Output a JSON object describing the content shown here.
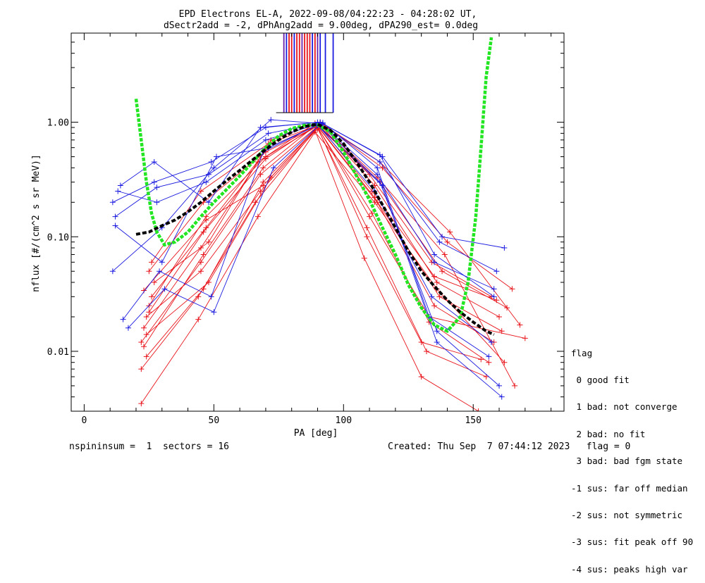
{
  "chart_data": {
    "type": "line",
    "title": "EPD Electrons EL-A, 2022-09-08/04:22:23 - 04:28:02 UT,",
    "subtitle": "dSectr2add = -2, dPhAng2add = 9.00deg, dPA290_est=   0.0deg",
    "xlabel": "PA [deg]",
    "ylabel": "nflux [#/(cm^2 s sr MeV)]",
    "xlim": [
      -5,
      185
    ],
    "ylim": [
      0.003,
      6
    ],
    "yscale": "log",
    "xticks": [
      0,
      50,
      100,
      150
    ],
    "xtick_labels": [
      "0",
      "50",
      "100",
      "150"
    ],
    "yticks": [
      0.01,
      0.1,
      1.0
    ],
    "ytick_labels": [
      "0.01",
      "0.10",
      "1.00"
    ],
    "colors": {
      "red": "#e8141b",
      "blue": "#1c1ce0",
      "green": "#22e622",
      "black": "#000000",
      "purple": "#6a1fa8"
    },
    "red_series": [
      {
        "x": [
          22,
          45,
          68,
          90,
          113,
          135,
          158
        ],
        "y": [
          0.012,
          0.06,
          0.35,
          0.92,
          0.2,
          0.025,
          0.012
        ]
      },
      {
        "x": [
          24,
          46,
          69,
          90,
          111,
          133,
          156
        ],
        "y": [
          0.009,
          0.035,
          0.3,
          0.9,
          0.16,
          0.018,
          0.008
        ]
      },
      {
        "x": [
          25,
          46,
          70,
          91,
          112,
          136,
          160
        ],
        "y": [
          0.05,
          0.2,
          0.55,
          0.95,
          0.28,
          0.04,
          0.02
        ]
      },
      {
        "x": [
          23,
          45,
          67,
          89,
          110,
          134,
          157
        ],
        "y": [
          0.016,
          0.08,
          0.45,
          0.98,
          0.35,
          0.06,
          0.03
        ]
      },
      {
        "x": [
          26,
          47,
          71,
          90,
          114,
          138,
          163
        ],
        "y": [
          0.03,
          0.12,
          0.6,
          0.95,
          0.3,
          0.05,
          0.024
        ]
      },
      {
        "x": [
          24,
          45,
          68,
          90,
          109,
          132,
          155
        ],
        "y": [
          0.02,
          0.05,
          0.25,
          0.88,
          0.12,
          0.01,
          0.006
        ]
      },
      {
        "x": [
          27,
          48,
          72,
          91,
          115,
          140,
          165
        ],
        "y": [
          0.04,
          0.09,
          0.7,
          1.0,
          0.4,
          0.09,
          0.035
        ]
      },
      {
        "x": [
          22,
          44,
          66,
          89,
          108,
          130,
          152
        ],
        "y": [
          0.007,
          0.03,
          0.2,
          0.85,
          0.065,
          0.006,
          0.003
        ]
      },
      {
        "x": [
          25,
          47,
          70,
          90,
          112,
          137,
          161
        ],
        "y": [
          0.025,
          0.15,
          0.5,
          0.93,
          0.22,
          0.03,
          0.015
        ]
      },
      {
        "x": [
          23,
          46,
          69,
          90,
          111,
          135,
          159
        ],
        "y": [
          0.011,
          0.07,
          0.4,
          0.97,
          0.25,
          0.045,
          0.028
        ]
      },
      {
        "x": [
          26,
          45,
          71,
          91,
          113,
          139,
          166
        ],
        "y": [
          0.06,
          0.25,
          0.65,
          0.96,
          0.33,
          0.07,
          0.005
        ]
      },
      {
        "x": [
          24,
          48,
          72,
          90,
          110,
          133,
          170
        ],
        "y": [
          0.014,
          0.04,
          0.33,
          0.91,
          0.15,
          0.02,
          0.013
        ]
      },
      {
        "x": [
          22,
          44,
          67,
          89,
          112,
          136,
          162
        ],
        "y": [
          0.0035,
          0.019,
          0.15,
          0.82,
          0.2,
          0.035,
          0.008
        ]
      },
      {
        "x": [
          25,
          46,
          70,
          91,
          114,
          141,
          168
        ],
        "y": [
          0.022,
          0.11,
          0.48,
          0.99,
          0.45,
          0.11,
          0.017
        ]
      },
      {
        "x": [
          23,
          47,
          69,
          90,
          109,
          130,
          153
        ],
        "y": [
          0.034,
          0.14,
          0.28,
          0.9,
          0.1,
          0.012,
          0.0085
        ]
      }
    ],
    "blue_series": [
      {
        "x": [
          11,
          27,
          49,
          70,
          90,
          114,
          137,
          159
        ],
        "y": [
          0.2,
          0.3,
          0.45,
          0.9,
          1.0,
          0.45,
          0.09,
          0.05
        ]
      },
      {
        "x": [
          12,
          28,
          48,
          71,
          91,
          113,
          135,
          158
        ],
        "y": [
          0.15,
          0.27,
          0.35,
          0.8,
          0.98,
          0.35,
          0.06,
          0.035
        ]
      },
      {
        "x": [
          11,
          30,
          50,
          72,
          92,
          115,
          138,
          162
        ],
        "y": [
          0.05,
          0.12,
          0.4,
          1.05,
          0.97,
          0.5,
          0.1,
          0.08
        ]
      },
      {
        "x": [
          15,
          29,
          49,
          69,
          90,
          112,
          134,
          157
        ],
        "y": [
          0.019,
          0.05,
          0.03,
          0.55,
          0.95,
          0.25,
          0.03,
          0.012
        ]
      },
      {
        "x": [
          17,
          31,
          50,
          73,
          91,
          114,
          136,
          160
        ],
        "y": [
          0.016,
          0.035,
          0.022,
          0.4,
          0.96,
          0.3,
          0.015,
          0.005
        ]
      },
      {
        "x": [
          13,
          28,
          47,
          70,
          92,
          113,
          133,
          156
        ],
        "y": [
          0.25,
          0.2,
          0.3,
          0.7,
          0.99,
          0.4,
          0.02,
          0.009
        ]
      },
      {
        "x": [
          12,
          30,
          51,
          71,
          90,
          115,
          136,
          161
        ],
        "y": [
          0.125,
          0.06,
          0.5,
          0.6,
          0.94,
          0.28,
          0.012,
          0.004
        ]
      },
      {
        "x": [
          14,
          27,
          48,
          68,
          91,
          114,
          135,
          158
        ],
        "y": [
          0.28,
          0.45,
          0.2,
          0.9,
          1.0,
          0.52,
          0.07,
          0.03
        ]
      }
    ],
    "green_curve": {
      "x": [
        20,
        22,
        24,
        26,
        28,
        31,
        35,
        40,
        45,
        50,
        55,
        60,
        65,
        70,
        75,
        80,
        85,
        90,
        95,
        100,
        105,
        110,
        115,
        120,
        125,
        130,
        135,
        140,
        145,
        148,
        151,
        153,
        155,
        157
      ],
      "y": [
        1.6,
        0.7,
        0.3,
        0.16,
        0.11,
        0.085,
        0.09,
        0.11,
        0.15,
        0.2,
        0.26,
        0.34,
        0.45,
        0.6,
        0.76,
        0.88,
        0.94,
        0.95,
        0.82,
        0.55,
        0.34,
        0.21,
        0.12,
        0.07,
        0.038,
        0.024,
        0.017,
        0.015,
        0.02,
        0.04,
        0.15,
        0.6,
        2.5,
        5.5
      ]
    },
    "black_curve": {
      "x": [
        20,
        25,
        30,
        35,
        40,
        45,
        50,
        55,
        60,
        65,
        70,
        75,
        80,
        85,
        90,
        95,
        100,
        105,
        110,
        115,
        120,
        125,
        130,
        135,
        140,
        145,
        150,
        155,
        158
      ],
      "y": [
        0.105,
        0.11,
        0.125,
        0.14,
        0.165,
        0.2,
        0.25,
        0.31,
        0.38,
        0.47,
        0.58,
        0.7,
        0.82,
        0.92,
        0.96,
        0.85,
        0.65,
        0.45,
        0.3,
        0.19,
        0.12,
        0.075,
        0.05,
        0.037,
        0.028,
        0.022,
        0.018,
        0.015,
        0.014
      ]
    },
    "vertical_markers": [
      {
        "x": 77,
        "color": "purple"
      },
      {
        "x": 78,
        "color": "blue"
      },
      {
        "x": 79,
        "color": "red"
      },
      {
        "x": 80,
        "color": "red"
      },
      {
        "x": 81,
        "color": "blue"
      },
      {
        "x": 82,
        "color": "red"
      },
      {
        "x": 83,
        "color": "red"
      },
      {
        "x": 84,
        "color": "purple"
      },
      {
        "x": 85,
        "color": "red"
      },
      {
        "x": 86,
        "color": "red"
      },
      {
        "x": 87,
        "color": "red"
      },
      {
        "x": 88,
        "color": "blue"
      },
      {
        "x": 89,
        "color": "red"
      },
      {
        "x": 90,
        "color": "purple"
      },
      {
        "x": 91,
        "color": "blue"
      },
      {
        "x": 93,
        "color": "blue"
      },
      {
        "x": 96,
        "color": "blue"
      }
    ]
  },
  "legend": {
    "title": "flag",
    "items": [
      " 0 good fit",
      " 1 bad: not converge",
      " 2 bad: no fit",
      " 3 bad: bad fgm state",
      "-1 sus: far off median",
      "-2 sus: not symmetric",
      "-3 sus: fit peak off 90",
      "-4 sus: peaks high var"
    ]
  },
  "footer": {
    "left": "nspininsum =  1  sectors = 16",
    "right": "Created: Thu Sep  7 07:44:12 2023   flag = 0"
  }
}
